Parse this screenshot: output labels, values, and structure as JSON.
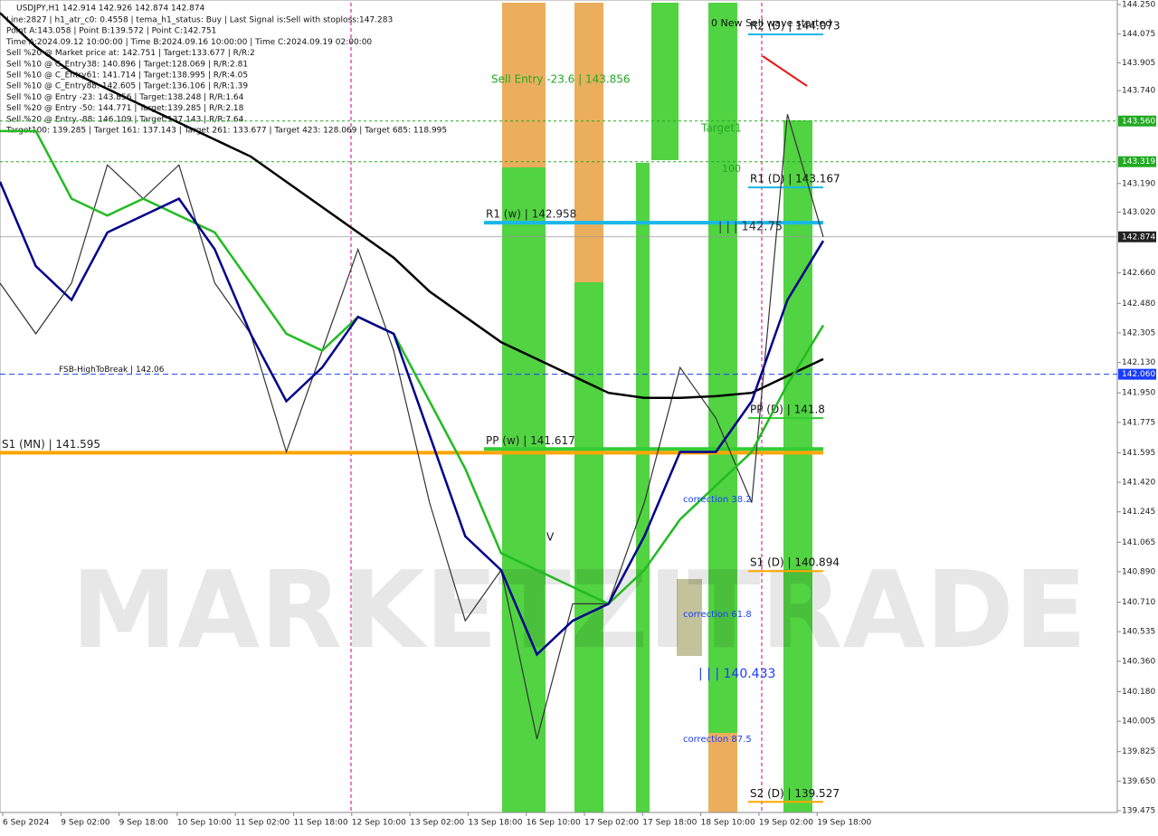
{
  "chart_data": {
    "type": "line",
    "title": "USDJPY,H1  142.914 142.926 142.874 142.874",
    "header_lines": [
      "Line:2827 | h1_atr_c0: 0.4558 | tema_h1_status: Buy | Last Signal is:Sell with stoploss:147.283",
      "Point A:143.058 | Point B:139.572 | Point C:142.751",
      "Time A:2024.09.12 10:00:00 | Time B:2024.09.16 10:00:00 | Time C:2024.09.19 02:00:00",
      "Sell %20 @ Market price at: 142.751 | Target:133.677 | R/R:2",
      "Sell %10 @ C_Entry38: 140.896 | Target:128.069 | R/R:2.81",
      "Sell %10 @ C_Entry61: 141.714 | Target:138.995 | R/R:4.05",
      "Sell %10 @ C_Entry88: 142.605 | Target:136.106 | R/R:1.39",
      "Sell %10 @ Entry -23: 143.856 | Target:138.248 | R/R:1.64",
      "Sell %20 @ Entry -50: 144.771 | Target:139.285 | R/R:2.18",
      "Sell %20 @ Entry -88: 146.109 | Target:137.143 | R/R:7.64",
      "Target100: 139.285 | Target 161: 137.143 | Target 261: 133.677 | Target 423: 128.069 | Target 685: 118.995"
    ],
    "watermark": "MARKETZITRADE",
    "categories": [
      "6 Sep 2024",
      "9 Sep 02:00",
      "9 Sep 18:00",
      "10 Sep 10:00",
      "11 Sep 02:00",
      "11 Sep 18:00",
      "12 Sep 10:00",
      "13 Sep 02:00",
      "13 Sep 18:00",
      "16 Sep 10:00",
      "17 Sep 02:00",
      "17 Sep 18:00",
      "18 Sep 10:00",
      "19 Sep 02:00",
      "19 Sep 18:00"
    ],
    "x": [
      0,
      1,
      2,
      3,
      4,
      5,
      6,
      7,
      8,
      9,
      10,
      11,
      12,
      13,
      14,
      15,
      16,
      17,
      18,
      19,
      20,
      21,
      22,
      23
    ],
    "xlim": [
      0,
      23
    ],
    "series": [
      {
        "color": "#333333",
        "values": [
          142.6,
          142.3,
          142.6,
          143.3,
          143.1,
          143.3,
          142.6,
          142.3,
          141.6,
          142.2,
          142.8,
          142.2,
          141.3,
          140.6,
          140.9,
          139.9,
          140.7,
          140.7,
          141.3,
          142.1,
          141.8,
          141.3,
          143.6,
          142.874
        ]
      },
      {
        "color": "#000000",
        "values": [
          144.2,
          144.0,
          143.85,
          143.75,
          143.65,
          143.55,
          143.45,
          143.35,
          143.2,
          143.05,
          142.9,
          142.75,
          142.55,
          142.4,
          142.25,
          142.15,
          142.05,
          141.95,
          141.92,
          141.92,
          141.93,
          141.95,
          142.05,
          142.15
        ]
      },
      {
        "color": "#22bb22",
        "values": [
          143.5,
          143.5,
          143.1,
          143.0,
          143.1,
          143.0,
          142.9,
          142.6,
          142.3,
          142.2,
          142.4,
          142.3,
          141.9,
          141.5,
          141.0,
          140.9,
          140.8,
          140.7,
          140.9,
          141.2,
          141.4,
          141.6,
          142.0,
          142.35
        ]
      },
      {
        "color": "#00008b",
        "values": [
          143.2,
          142.7,
          142.5,
          142.9,
          143.0,
          143.1,
          142.8,
          142.3,
          141.9,
          142.1,
          142.4,
          142.3,
          141.7,
          141.1,
          140.9,
          140.4,
          140.6,
          140.7,
          141.1,
          141.6,
          141.6,
          141.9,
          142.5,
          142.85
        ]
      }
    ],
    "ylim": [
      139.475,
      144.25
    ],
    "yticks": [
      {
        "value": 139.475,
        "label": "139.475"
      },
      {
        "value": 139.65,
        "label": "139.650"
      },
      {
        "value": 139.825,
        "label": "139.825"
      },
      {
        "value": 140.005,
        "label": "140.005"
      },
      {
        "value": 140.18,
        "label": "140.180"
      },
      {
        "value": 140.36,
        "label": "140.360"
      },
      {
        "value": 140.535,
        "label": "140.535"
      },
      {
        "value": 140.71,
        "label": "140.710"
      },
      {
        "value": 140.89,
        "label": "140.890"
      },
      {
        "value": 141.065,
        "label": "141.065"
      },
      {
        "value": 141.245,
        "label": "141.245"
      },
      {
        "value": 141.42,
        "label": "141.420"
      },
      {
        "value": 141.595,
        "label": "141.595"
      },
      {
        "value": 141.775,
        "label": "141.775"
      },
      {
        "value": 141.95,
        "label": "141.950"
      },
      {
        "value": 142.13,
        "label": "142.130"
      },
      {
        "value": 142.305,
        "label": "142.305"
      },
      {
        "value": 142.48,
        "label": "142.480"
      },
      {
        "value": 142.66,
        "label": "142.660"
      },
      {
        "value": 143.02,
        "label": "143.020"
      },
      {
        "value": 143.19,
        "label": "143.190"
      },
      {
        "value": 143.74,
        "label": "143.740"
      },
      {
        "value": 143.905,
        "label": "143.905"
      },
      {
        "value": 144.075,
        "label": "144.075"
      },
      {
        "value": 144.25,
        "label": "144.250"
      }
    ],
    "price_labels": [
      {
        "value": 143.56,
        "label": "143.560",
        "color": "#22aa22"
      },
      {
        "value": 143.319,
        "label": "143.319",
        "color": "#22aa22"
      },
      {
        "value": 142.874,
        "label": "142.874",
        "color": "#222222"
      },
      {
        "value": 142.06,
        "label": "142.060",
        "color": "#1a3cff"
      }
    ],
    "levels": [
      {
        "label": "R1 (w) | 142.958",
        "value": 142.958,
        "color": "#1ab6ea"
      },
      {
        "label": "PP (w) | 141.617",
        "value": 141.617,
        "color": "#33cc33"
      },
      {
        "label": "S1 (MN) | 141.595",
        "value": 141.595,
        "color": "#ffa500"
      },
      {
        "label": "FSB-HighToBreak | 142.06",
        "value": 142.06,
        "color": "#1a3cff"
      },
      {
        "label": "R2 (D) | 144.073",
        "value": 144.073,
        "color": "#1ab6ea"
      },
      {
        "label": "R1 (D) | 143.167",
        "value": 143.167,
        "color": "#1ab6ea"
      },
      {
        "label": "PP (D) | 141.8",
        "value": 141.8,
        "color": "#33cc33"
      },
      {
        "label": "S1 (D) | 140.894",
        "value": 140.894,
        "color": "#ffa500"
      },
      {
        "label": "S2 (D) | 139.527",
        "value": 139.527,
        "color": "#ffa500"
      }
    ],
    "annotations": [
      "Sell Entry -23.6 | 143.856",
      "Target1",
      "100",
      "0 New Sell wave started",
      "| | | 142.75",
      "correction 38.2",
      "correction 61.8",
      "correction 87.5",
      "| | | 140.433",
      "V"
    ]
  }
}
